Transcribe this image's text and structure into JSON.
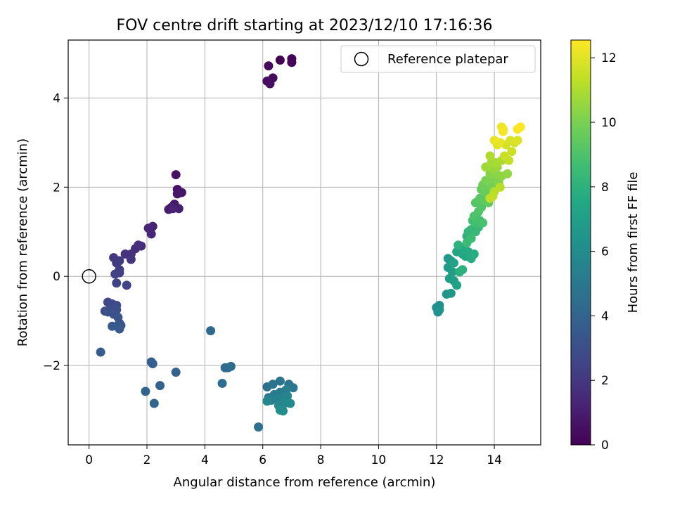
{
  "chart_data": {
    "type": "scatter",
    "title": "FOV centre drift starting at 2023/12/10 17:16:36",
    "xlabel": "Angular distance from reference (arcmin)",
    "ylabel": "Rotation from reference (arcmin)",
    "xlim": [
      -0.72,
      15.6
    ],
    "ylim": [
      -3.78,
      5.3
    ],
    "xticks": [
      0,
      2,
      4,
      6,
      8,
      10,
      12,
      14
    ],
    "yticks": [
      -2,
      0,
      2,
      4
    ],
    "grid": true,
    "legend": {
      "position": "top-right",
      "label": "Reference platepar"
    },
    "reference_point": {
      "x": 0,
      "y": 0
    },
    "colorbar": {
      "label": "Hours from first FF file",
      "colormap": "viridis",
      "range": [
        0,
        12.55
      ],
      "ticks": [
        0,
        2,
        4,
        6,
        8,
        10,
        12
      ]
    },
    "series": [
      {
        "points": [
          [
            6.6,
            4.85
          ],
          [
            7.0,
            4.88
          ],
          [
            7.0,
            4.8
          ],
          [
            6.2,
            4.72
          ],
          [
            6.35,
            4.45
          ],
          [
            6.15,
            4.38
          ],
          [
            6.25,
            4.32
          ],
          [
            3.0,
            2.28
          ],
          [
            3.05,
            1.95
          ],
          [
            3.2,
            1.88
          ],
          [
            3.05,
            1.85
          ],
          [
            2.95,
            1.62
          ],
          [
            2.85,
            1.55
          ],
          [
            2.75,
            1.5
          ],
          [
            3.1,
            1.52
          ],
          [
            2.9,
            1.52
          ],
          [
            2.2,
            1.12
          ],
          [
            2.05,
            1.08
          ],
          [
            2.15,
            0.95
          ],
          [
            1.8,
            0.68
          ],
          [
            1.6,
            0.62
          ],
          [
            1.7,
            0.7
          ],
          [
            1.45,
            0.5
          ],
          [
            1.25,
            0.5
          ],
          [
            1.45,
            0.38
          ],
          [
            0.85,
            0.42
          ],
          [
            1.05,
            0.35
          ],
          [
            0.95,
            0.3
          ],
          [
            1.05,
            0.15
          ],
          [
            1.05,
            0.08
          ],
          [
            0.9,
            0.05
          ],
          [
            0.95,
            -0.15
          ],
          [
            1.3,
            -0.2
          ],
          [
            0.65,
            -0.58
          ],
          [
            0.8,
            -0.62
          ],
          [
            0.95,
            -0.65
          ],
          [
            0.55,
            -0.78
          ],
          [
            0.75,
            -0.72
          ],
          [
            0.95,
            -0.75
          ],
          [
            0.65,
            -0.8
          ],
          [
            0.85,
            -0.85
          ],
          [
            1.0,
            -0.92
          ],
          [
            1.05,
            -1.05
          ],
          [
            1.1,
            -1.1
          ],
          [
            1.05,
            -1.18
          ],
          [
            0.8,
            -1.12
          ],
          [
            0.4,
            -1.7
          ],
          [
            2.15,
            -1.92
          ],
          [
            2.2,
            -1.96
          ],
          [
            3.0,
            -2.15
          ],
          [
            2.45,
            -2.45
          ],
          [
            1.95,
            -2.58
          ],
          [
            2.25,
            -2.85
          ],
          [
            4.2,
            -1.22
          ],
          [
            4.7,
            -2.05
          ],
          [
            4.8,
            -2.05
          ],
          [
            4.9,
            -2.02
          ],
          [
            4.6,
            -2.4
          ],
          [
            5.85,
            -3.38
          ],
          [
            6.15,
            -2.48
          ],
          [
            6.35,
            -2.42
          ],
          [
            6.6,
            -2.35
          ],
          [
            6.9,
            -2.42
          ],
          [
            7.05,
            -2.5
          ],
          [
            6.2,
            -2.72
          ],
          [
            6.4,
            -2.65
          ],
          [
            6.6,
            -2.6
          ],
          [
            6.8,
            -2.55
          ],
          [
            6.3,
            -2.78
          ],
          [
            6.5,
            -2.75
          ],
          [
            6.7,
            -2.72
          ],
          [
            6.85,
            -2.68
          ],
          [
            6.15,
            -2.8
          ],
          [
            6.55,
            -2.9
          ],
          [
            6.75,
            -2.85
          ],
          [
            6.95,
            -2.85
          ],
          [
            6.6,
            -3.0
          ],
          [
            6.7,
            -3.02
          ],
          [
            12.0,
            -0.7
          ],
          [
            12.1,
            -0.65
          ],
          [
            12.1,
            -0.75
          ],
          [
            12.05,
            -0.8
          ],
          [
            12.35,
            -0.4
          ],
          [
            12.5,
            -0.38
          ],
          [
            12.4,
            0.4
          ],
          [
            12.5,
            0.35
          ],
          [
            12.4,
            0.2
          ],
          [
            12.55,
            0.1
          ],
          [
            12.45,
            -0.05
          ],
          [
            12.6,
            -0.1
          ],
          [
            12.7,
            -0.2
          ],
          [
            12.6,
            0.3
          ],
          [
            12.7,
            0.55
          ],
          [
            12.9,
            0.5
          ],
          [
            13.0,
            0.45
          ],
          [
            12.95,
            0.6
          ],
          [
            13.1,
            0.55
          ],
          [
            13.2,
            0.4
          ],
          [
            13.3,
            0.5
          ],
          [
            12.8,
            0.1
          ],
          [
            12.9,
            0.15
          ],
          [
            12.75,
            0.7
          ],
          [
            13.05,
            0.9
          ],
          [
            13.1,
            1.0
          ],
          [
            13.2,
            1.05
          ],
          [
            13.35,
            1.0
          ],
          [
            13.45,
            1.1
          ],
          [
            13.05,
            0.75
          ],
          [
            13.2,
            0.85
          ],
          [
            13.25,
            1.25
          ],
          [
            13.4,
            1.2
          ],
          [
            13.5,
            1.25
          ],
          [
            13.6,
            1.2
          ],
          [
            13.3,
            1.35
          ],
          [
            13.45,
            1.45
          ],
          [
            13.55,
            1.55
          ],
          [
            13.35,
            1.65
          ],
          [
            13.5,
            1.75
          ],
          [
            13.65,
            1.7
          ],
          [
            13.8,
            1.65
          ],
          [
            13.55,
            1.95
          ],
          [
            13.7,
            1.9
          ],
          [
            13.85,
            1.95
          ],
          [
            13.6,
            2.05
          ],
          [
            13.9,
            2.0
          ],
          [
            14.0,
            2.1
          ],
          [
            13.7,
            2.15
          ],
          [
            13.95,
            2.2
          ],
          [
            14.15,
            2.1
          ],
          [
            13.85,
            2.3
          ],
          [
            14.05,
            2.3
          ],
          [
            14.25,
            2.25
          ],
          [
            14.45,
            2.3
          ],
          [
            13.95,
            2.4
          ],
          [
            14.1,
            2.45
          ],
          [
            13.7,
            2.45
          ],
          [
            13.9,
            2.55
          ],
          [
            14.05,
            2.55
          ],
          [
            14.25,
            2.6
          ],
          [
            13.85,
            2.7
          ],
          [
            14.0,
            1.9
          ],
          [
            14.2,
            2.0
          ],
          [
            13.95,
            1.8
          ],
          [
            13.85,
            1.75
          ],
          [
            14.5,
            2.6
          ],
          [
            14.35,
            2.7
          ],
          [
            14.6,
            2.8
          ],
          [
            14.4,
            2.95
          ],
          [
            14.7,
            3.0
          ],
          [
            14.55,
            3.05
          ],
          [
            14.8,
            3.05
          ],
          [
            14.1,
            2.95
          ],
          [
            14.2,
            3.0
          ],
          [
            14.0,
            3.05
          ],
          [
            14.25,
            3.35
          ],
          [
            14.3,
            3.3
          ],
          [
            14.3,
            3.25
          ],
          [
            14.8,
            3.3
          ],
          [
            14.9,
            3.35
          ]
        ]
      }
    ]
  }
}
